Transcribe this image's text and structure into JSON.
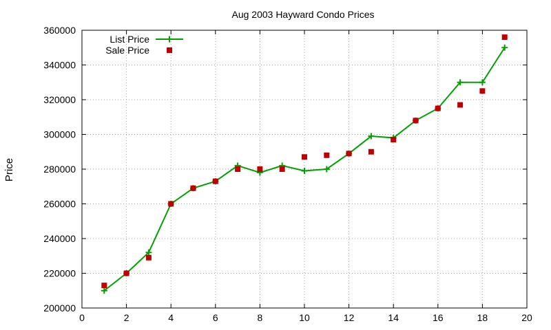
{
  "chart_data": {
    "type": "line",
    "title": "Aug 2003 Hayward Condo Prices",
    "xlabel": "",
    "ylabel": "Price",
    "xlim": [
      0,
      20
    ],
    "ylim": [
      200000,
      360000
    ],
    "x_ticks": [
      "0",
      "2",
      "4",
      "6",
      "8",
      "10",
      "12",
      "14",
      "16",
      "18",
      "20"
    ],
    "y_ticks": [
      "200000",
      "220000",
      "240000",
      "260000",
      "280000",
      "300000",
      "320000",
      "340000",
      "360000"
    ],
    "grid": true,
    "legend_position": "top-left",
    "series": [
      {
        "name": "List Price",
        "style": "line-with-plus-markers",
        "color": "#00a000",
        "x": [
          1,
          2,
          3,
          4,
          5,
          6,
          7,
          8,
          9,
          10,
          11,
          12,
          13,
          14,
          15,
          16,
          17,
          18,
          19
        ],
        "y": [
          210000,
          220000,
          232000,
          260000,
          269000,
          273000,
          282000,
          278000,
          282000,
          279000,
          280000,
          289000,
          299000,
          298000,
          308000,
          315000,
          330000,
          330000,
          350000
        ]
      },
      {
        "name": "Sale Price",
        "style": "square-markers",
        "color": "#c00000",
        "x": [
          1,
          2,
          3,
          4,
          5,
          6,
          7,
          8,
          9,
          10,
          11,
          12,
          13,
          14,
          15,
          16,
          17,
          18,
          19
        ],
        "y": [
          213000,
          220000,
          229000,
          260000,
          269000,
          273000,
          280000,
          280000,
          280000,
          287000,
          288000,
          289000,
          290000,
          297000,
          308000,
          315000,
          317000,
          325000,
          356000
        ]
      }
    ]
  }
}
